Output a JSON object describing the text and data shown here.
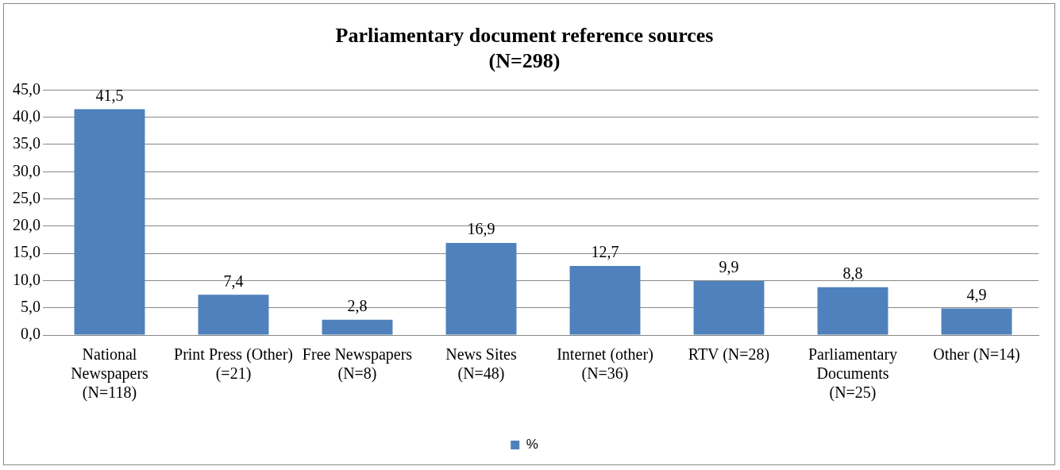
{
  "chart_data": {
    "type": "bar",
    "title": "Parliamentary document reference sources\n(N=298)",
    "categories": [
      "National Newspapers (N=118)",
      "Print Press (Other) (=21)",
      "Free Newspapers (N=8)",
      "News Sites (N=48)",
      "Internet (other) (N=36)",
      "RTV (N=28)",
      "Parliamentary Documents (N=25)",
      "Other (N=14)"
    ],
    "series": [
      {
        "name": "%",
        "color": "#4f81bd",
        "values": [
          41.5,
          7.4,
          2.8,
          16.9,
          12.7,
          9.9,
          8.8,
          4.9
        ]
      }
    ],
    "value_labels": [
      "41,5",
      "7,4",
      "2,8",
      "16,9",
      "12,7",
      "9,9",
      "8,8",
      "4,9"
    ],
    "ylim": [
      0,
      45
    ],
    "yticks": [
      {
        "value": 0,
        "label": "0,0"
      },
      {
        "value": 5,
        "label": "5,0"
      },
      {
        "value": 10,
        "label": "10,0"
      },
      {
        "value": 15,
        "label": "15,0"
      },
      {
        "value": 20,
        "label": "20,0"
      },
      {
        "value": 25,
        "label": "25,0"
      },
      {
        "value": 30,
        "label": "30,0"
      },
      {
        "value": 35,
        "label": "35,0"
      },
      {
        "value": 40,
        "label": "40,0"
      },
      {
        "value": 45,
        "label": "45,0"
      }
    ],
    "grid": "y",
    "legend": "bottom"
  }
}
